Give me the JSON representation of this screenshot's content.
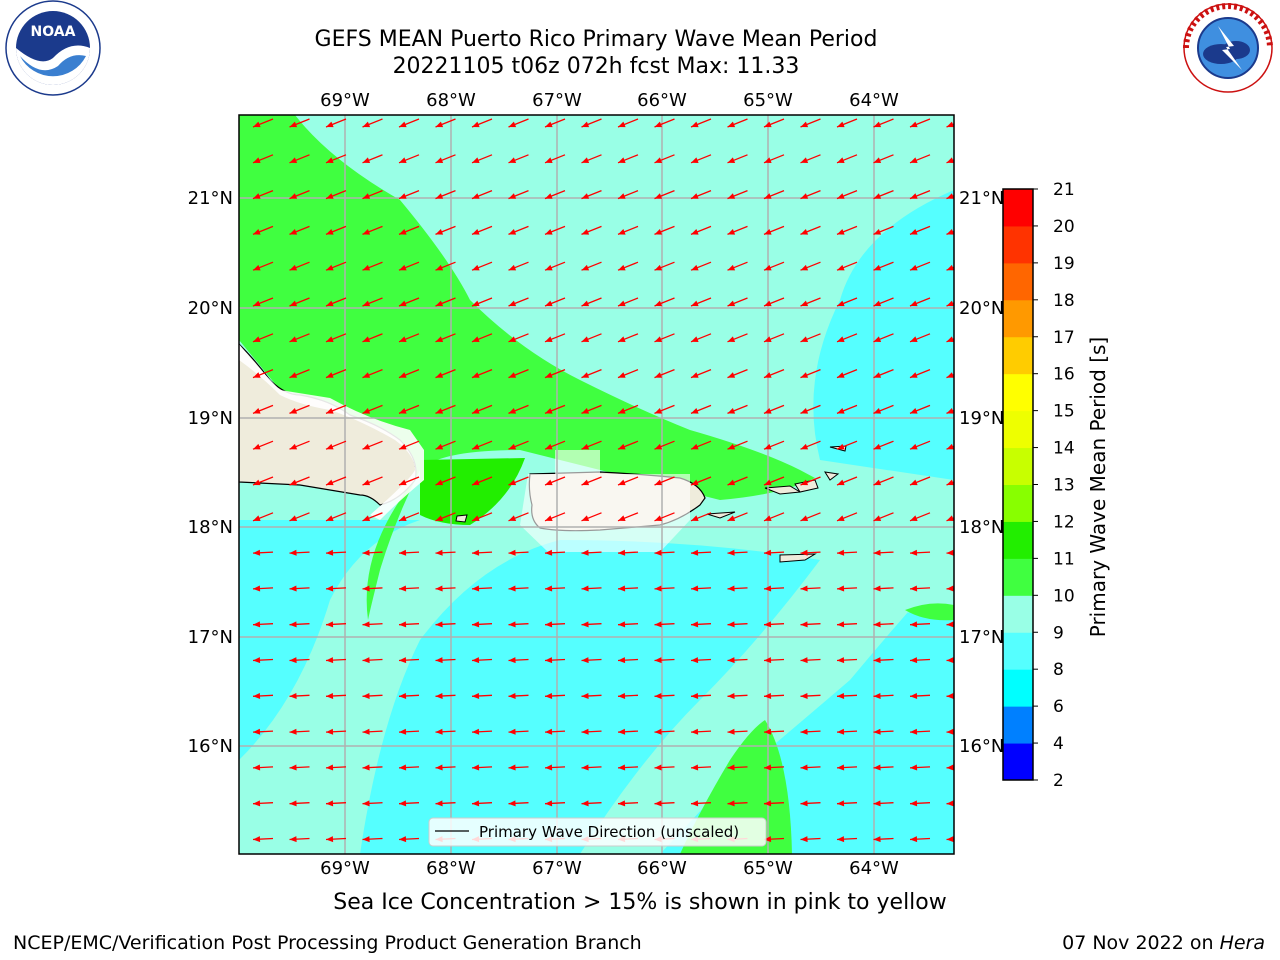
{
  "header": {
    "title_line1": "GEFS MEAN Puerto Rico Primary Wave Mean Period",
    "title_line2": "20221105 t06z 072h fcst   Max: 11.33"
  },
  "logos": {
    "noaa": {
      "text": "NOAA",
      "ring_text": "NATIONAL OCEANIC AND ATMOSPHERIC ADMINISTRATION • U.S. DEPARTMENT OF COMMERCE"
    },
    "nws": {
      "ring_text": "NATIONAL WEATHER SERVICE"
    }
  },
  "map": {
    "lon_ticks": [
      "69°W",
      "68°W",
      "67°W",
      "66°W",
      "65°W",
      "64°W"
    ],
    "lat_ticks": [
      "21°N",
      "20°N",
      "19°N",
      "18°N",
      "17°N",
      "16°N"
    ],
    "legend_label": "Primary Wave Direction (unscaled)",
    "arrow_color": "#ff0000",
    "land_color": "#efecdc",
    "wave_direction": "toward southwest"
  },
  "colorbar": {
    "label": "Primary Wave Mean Period [s]",
    "levels": [
      2,
      4,
      6,
      8,
      9,
      10,
      11,
      12,
      13,
      14,
      15,
      16,
      17,
      18,
      19,
      20,
      21
    ],
    "colors": [
      "#0000ff",
      "#0080ff",
      "#00ffff",
      "#55ffff",
      "#99ffe6",
      "#40ff40",
      "#22ee00",
      "#88ff00",
      "#c8ff00",
      "#eeff00",
      "#ffff00",
      "#ffcc00",
      "#ff9900",
      "#ff6600",
      "#ff3300",
      "#ff0000"
    ]
  },
  "footer": {
    "sea_ice_note": "Sea Ice Concentration > 15% is shown in pink to yellow",
    "credit": "NCEP/EMC/Verification Post Processing Product Generation Branch",
    "date": "07 Nov 2022 on",
    "machine": "Hera"
  }
}
